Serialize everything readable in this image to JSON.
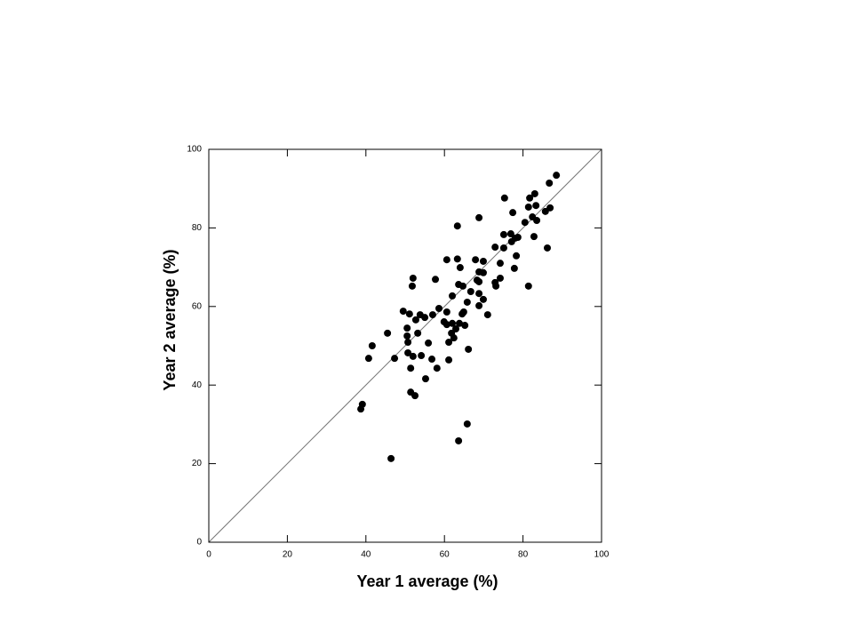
{
  "chart_data": {
    "type": "scatter",
    "x_label": "Year 1 average (%)",
    "y_label": "Year 2 average (%)",
    "xlim": [
      0,
      100
    ],
    "ylim": [
      0,
      100
    ],
    "xticks": [
      0,
      20,
      40,
      60,
      80,
      100
    ],
    "yticks": [
      0,
      20,
      40,
      60,
      80,
      100
    ],
    "color": "#000000",
    "x": [
      88.5,
      86.7,
      86.9,
      85.7,
      83,
      81.7,
      83.3,
      81.4,
      82.4,
      83.5,
      80.5,
      75.3,
      77.4,
      68.8,
      63.3,
      82.8,
      86.2,
      75.1,
      76.9,
      78,
      78.7,
      77.1,
      72.9,
      75.1,
      78.3,
      77.8,
      81.4,
      60.6,
      63.3,
      67.9,
      69.9,
      74.2,
      64,
      68.8,
      69.9,
      74.2,
      52,
      57.7,
      68.3,
      68.8,
      72.9,
      63.6,
      64.7,
      51.8,
      73.1,
      66.7,
      68.8,
      62,
      69.9,
      65.8,
      68.8,
      58.6,
      49.5,
      60.6,
      64.9,
      53.8,
      51.1,
      57,
      71,
      64.5,
      55,
      52.7,
      59.9,
      62,
      63.8,
      65.2,
      60.6,
      50.5,
      62.9,
      45.5,
      53.2,
      61.8,
      50.5,
      62.4,
      50.7,
      55.9,
      61.1,
      41.6,
      66.1,
      50.7,
      54.1,
      52,
      56.8,
      61.1,
      40.7,
      47.3,
      51.4,
      58.1,
      55.2,
      51.4,
      52.5,
      39.1,
      38.7,
      65.8,
      63.6,
      46.4
    ],
    "values": [
      93.4,
      91.4,
      85.1,
      84.2,
      88.7,
      87.6,
      85.7,
      85.3,
      82.8,
      81.9,
      81.4,
      87.6,
      83.9,
      82.6,
      80.5,
      77.8,
      74.9,
      78.3,
      78.5,
      77.4,
      77.6,
      76.5,
      75.1,
      74.9,
      72.9,
      69.7,
      65.2,
      71.9,
      72.1,
      71.9,
      71.5,
      71,
      69.9,
      68.8,
      68.6,
      67.2,
      67.2,
      66.9,
      66.7,
      66.3,
      66.1,
      65.6,
      65.2,
      65.2,
      65.2,
      63.8,
      63.3,
      62.7,
      61.8,
      61.1,
      60.2,
      59.5,
      58.8,
      58.6,
      58.6,
      57.9,
      58.1,
      57.9,
      57.9,
      58.1,
      57.2,
      56.6,
      56.1,
      55.7,
      55.7,
      55.2,
      55.4,
      54.5,
      54.3,
      53.2,
      53.2,
      53.2,
      52.5,
      52,
      50.9,
      50.7,
      50.9,
      50,
      49.1,
      48.2,
      47.5,
      47.3,
      46.6,
      46.4,
      46.8,
      46.8,
      44.3,
      44.3,
      41.6,
      38.2,
      37.3,
      35.1,
      33.9,
      30.1,
      25.8,
      21.3
    ]
  }
}
